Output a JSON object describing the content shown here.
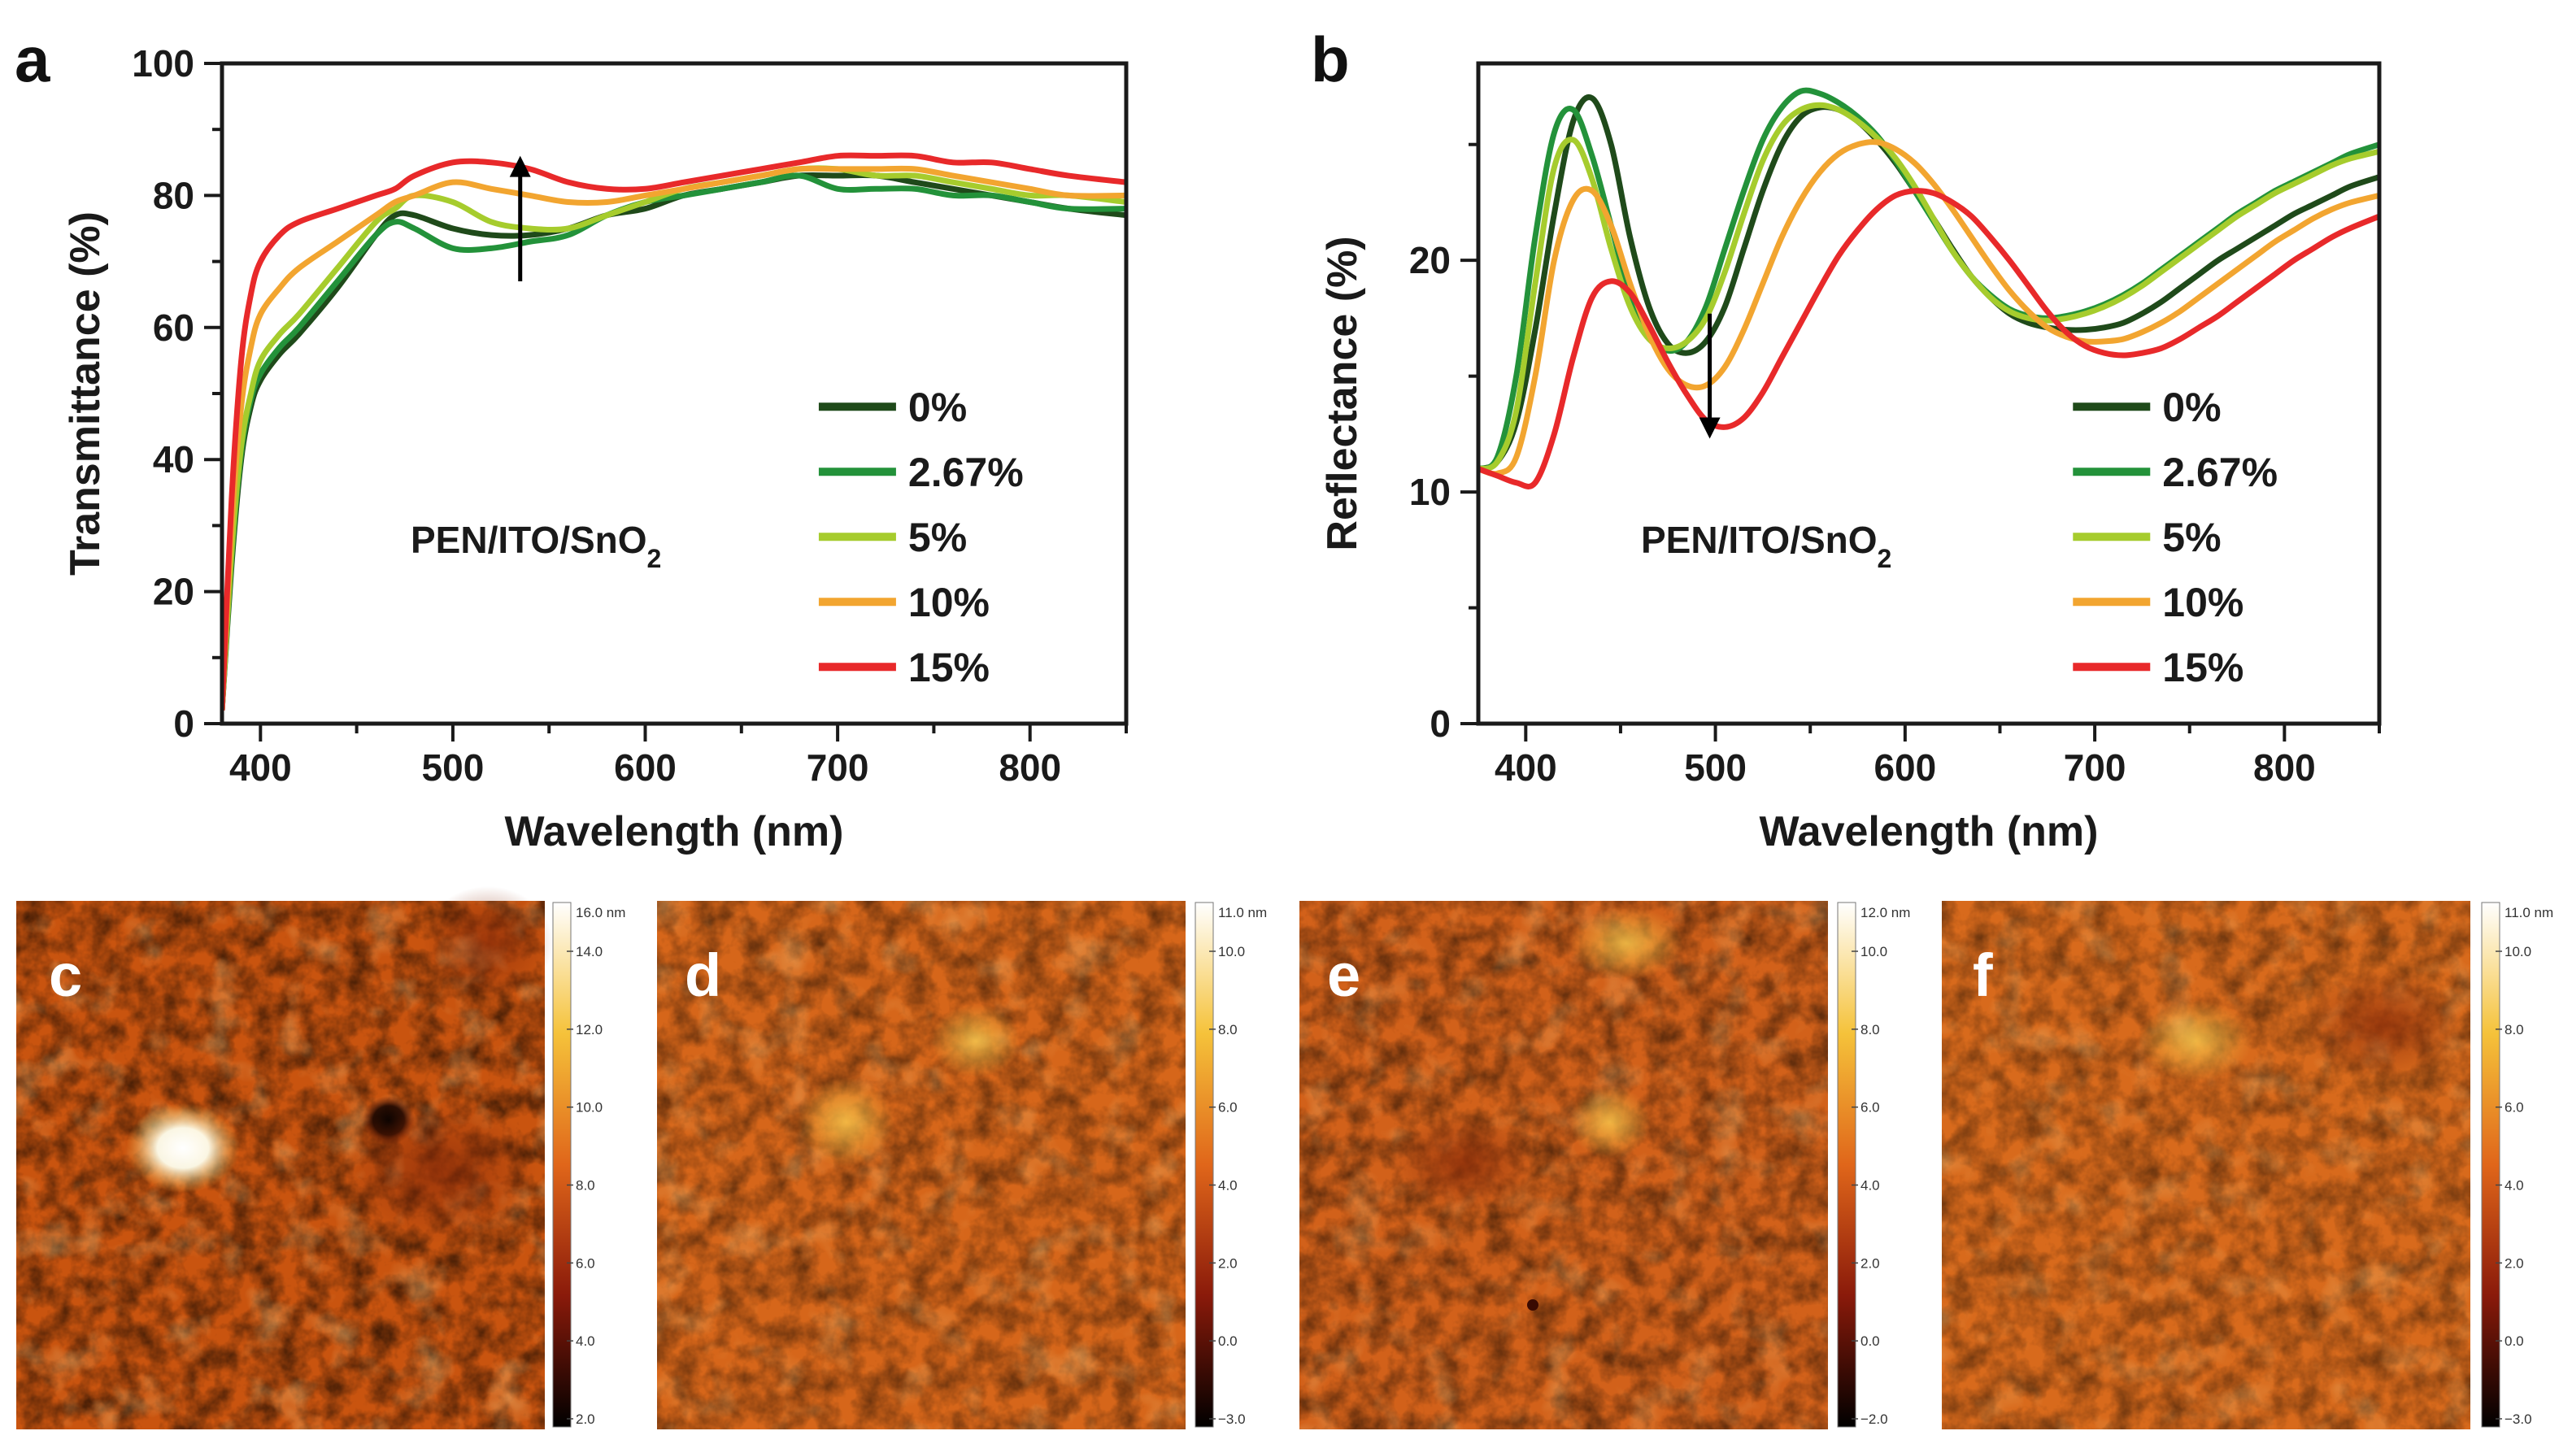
{
  "chart_data": [
    {
      "panel": "a",
      "type": "line",
      "xlabel": "Wavelength (nm)",
      "ylabel": "Transmittance (%)",
      "xlim": [
        380,
        850
      ],
      "ylim": [
        0,
        100
      ],
      "xticks": [
        400,
        500,
        600,
        700,
        800
      ],
      "yticks": [
        0,
        20,
        40,
        60,
        80,
        100
      ],
      "annotation": {
        "text": "PEN/ITO/SnO",
        "subscript": "2"
      },
      "arrow": {
        "direction": "up",
        "x": 535,
        "from": 67,
        "to": 86
      },
      "legend_position": "right",
      "series": [
        {
          "name": "0%",
          "color": "#1f4a1a",
          "x": [
            380,
            385,
            390,
            395,
            400,
            410,
            420,
            440,
            460,
            470,
            480,
            500,
            520,
            540,
            560,
            580,
            600,
            620,
            640,
            660,
            680,
            700,
            720,
            740,
            760,
            780,
            800,
            820,
            850
          ],
          "y": [
            2,
            24,
            40,
            48,
            52,
            56,
            59,
            66,
            74,
            77,
            77,
            75,
            74,
            74,
            75,
            77,
            78,
            80,
            81,
            82,
            83,
            83,
            83,
            82,
            81,
            80,
            79,
            78,
            77
          ]
        },
        {
          "name": "2.67%",
          "color": "#23923a",
          "x": [
            380,
            385,
            390,
            395,
            400,
            410,
            420,
            440,
            460,
            470,
            480,
            500,
            520,
            540,
            560,
            580,
            600,
            620,
            640,
            660,
            680,
            700,
            720,
            740,
            760,
            780,
            800,
            820,
            850
          ],
          "y": [
            2,
            25,
            41,
            49,
            53,
            57,
            60,
            67,
            74,
            76,
            75,
            72,
            72,
            73,
            74,
            77,
            79,
            80,
            81,
            82,
            83,
            81,
            81,
            81,
            80,
            80,
            79,
            78,
            78
          ]
        },
        {
          "name": "5%",
          "color": "#a6cc2d",
          "x": [
            380,
            385,
            390,
            395,
            400,
            410,
            420,
            440,
            460,
            470,
            480,
            500,
            520,
            540,
            560,
            580,
            600,
            620,
            640,
            660,
            680,
            700,
            720,
            740,
            760,
            780,
            800,
            820,
            850
          ],
          "y": [
            2,
            26,
            42,
            50,
            55,
            59,
            62,
            69,
            76,
            78,
            80,
            79,
            76,
            75,
            75,
            77,
            79,
            81,
            82,
            83,
            84,
            84,
            83,
            83,
            82,
            81,
            80,
            80,
            79
          ]
        },
        {
          "name": "10%",
          "color": "#f2a530",
          "x": [
            380,
            385,
            390,
            395,
            400,
            410,
            420,
            440,
            460,
            470,
            480,
            500,
            520,
            540,
            560,
            580,
            600,
            620,
            640,
            660,
            680,
            700,
            720,
            740,
            760,
            780,
            800,
            820,
            850
          ],
          "y": [
            2,
            30,
            48,
            57,
            62,
            66,
            69,
            73,
            77,
            79,
            80,
            82,
            81,
            80,
            79,
            79,
            80,
            81,
            82,
            83,
            84,
            84,
            84,
            84,
            83,
            82,
            81,
            80,
            80
          ]
        },
        {
          "name": "15%",
          "color": "#e8292a",
          "x": [
            380,
            385,
            390,
            395,
            400,
            410,
            420,
            440,
            460,
            470,
            480,
            500,
            520,
            540,
            560,
            580,
            600,
            620,
            640,
            660,
            680,
            700,
            720,
            740,
            760,
            780,
            800,
            820,
            850
          ],
          "y": [
            2,
            34,
            55,
            65,
            70,
            74,
            76,
            78,
            80,
            81,
            83,
            85,
            85,
            84,
            82,
            81,
            81,
            82,
            83,
            84,
            85,
            86,
            86,
            86,
            85,
            85,
            84,
            83,
            82
          ]
        }
      ]
    },
    {
      "panel": "b",
      "type": "line",
      "xlabel": "Wavelength (nm)",
      "ylabel": "Reflectance (%)",
      "xlim": [
        375,
        850
      ],
      "ylim": [
        0,
        28.5
      ],
      "xticks": [
        400,
        500,
        600,
        700,
        800
      ],
      "yticks": [
        0,
        10,
        20
      ],
      "annotation": {
        "text": "PEN/ITO/SnO",
        "subscript": "2"
      },
      "arrow": {
        "direction": "down",
        "x": 497,
        "from": 17.7,
        "to": 12.3
      },
      "legend_position": "right",
      "series": [
        {
          "name": "0%",
          "color": "#1f4a1a",
          "x": [
            375,
            385,
            395,
            405,
            415,
            425,
            435,
            445,
            455,
            465,
            475,
            485,
            495,
            505,
            515,
            525,
            535,
            545,
            555,
            565,
            575,
            585,
            595,
            605,
            615,
            625,
            635,
            645,
            655,
            665,
            675,
            685,
            695,
            705,
            715,
            725,
            735,
            745,
            755,
            765,
            775,
            785,
            795,
            805,
            815,
            825,
            835,
            850
          ],
          "y": [
            11,
            11.3,
            13,
            17,
            22,
            26,
            27,
            25,
            21,
            18,
            16.4,
            16,
            16.5,
            18,
            20.5,
            23,
            25,
            26.2,
            26.6,
            26.5,
            26,
            25.2,
            24.2,
            23,
            21.8,
            20.5,
            19.3,
            18.4,
            17.7,
            17.3,
            17.1,
            17,
            17,
            17.1,
            17.3,
            17.7,
            18.2,
            18.8,
            19.4,
            20,
            20.5,
            21,
            21.5,
            22,
            22.4,
            22.8,
            23.2,
            23.6
          ]
        },
        {
          "name": "2.67%",
          "color": "#23923a",
          "x": [
            375,
            385,
            395,
            405,
            415,
            425,
            435,
            445,
            455,
            465,
            475,
            485,
            495,
            505,
            515,
            525,
            535,
            545,
            555,
            565,
            575,
            585,
            595,
            605,
            615,
            625,
            635,
            645,
            655,
            665,
            675,
            685,
            695,
            705,
            715,
            725,
            735,
            745,
            755,
            765,
            775,
            785,
            795,
            805,
            815,
            825,
            835,
            850
          ],
          "y": [
            11,
            11.5,
            15,
            21,
            25.5,
            26.5,
            24.5,
            21.5,
            18.5,
            16.8,
            16.1,
            16.5,
            18,
            20.5,
            23,
            25.2,
            26.6,
            27.3,
            27.2,
            26.8,
            26.2,
            25.4,
            24.3,
            23,
            21.7,
            20.4,
            19.3,
            18.5,
            17.9,
            17.6,
            17.5,
            17.6,
            17.8,
            18.1,
            18.5,
            19,
            19.6,
            20.2,
            20.8,
            21.4,
            22,
            22.5,
            23,
            23.4,
            23.8,
            24.2,
            24.6,
            25
          ]
        },
        {
          "name": "5%",
          "color": "#a6cc2d",
          "x": [
            375,
            385,
            395,
            405,
            415,
            425,
            435,
            445,
            455,
            465,
            475,
            485,
            495,
            505,
            515,
            525,
            535,
            545,
            555,
            565,
            575,
            585,
            595,
            605,
            615,
            625,
            635,
            645,
            655,
            665,
            675,
            685,
            695,
            705,
            715,
            725,
            735,
            745,
            755,
            765,
            775,
            785,
            795,
            805,
            815,
            825,
            835,
            850
          ],
          "y": [
            11,
            11.3,
            13.5,
            19,
            24,
            25.2,
            23.5,
            20.5,
            18,
            16.6,
            16.2,
            16.5,
            17.5,
            19.5,
            22,
            24.3,
            25.8,
            26.5,
            26.7,
            26.5,
            26,
            25.3,
            24.4,
            23.2,
            21.8,
            20.4,
            19.3,
            18.4,
            17.8,
            17.5,
            17.4,
            17.5,
            17.7,
            18,
            18.4,
            18.9,
            19.5,
            20.1,
            20.7,
            21.3,
            21.9,
            22.4,
            22.9,
            23.3,
            23.7,
            24.1,
            24.4,
            24.7
          ]
        },
        {
          "name": "10%",
          "color": "#f2a530",
          "x": [
            375,
            385,
            395,
            405,
            415,
            425,
            435,
            445,
            455,
            465,
            475,
            485,
            495,
            505,
            515,
            525,
            535,
            545,
            555,
            565,
            575,
            585,
            595,
            605,
            615,
            625,
            635,
            645,
            655,
            665,
            675,
            685,
            695,
            705,
            715,
            725,
            735,
            745,
            755,
            765,
            775,
            785,
            795,
            805,
            815,
            825,
            835,
            850
          ],
          "y": [
            11,
            10.8,
            11.5,
            15,
            20,
            22.6,
            23,
            21.5,
            19,
            16.8,
            15.3,
            14.6,
            14.6,
            15.4,
            17,
            19,
            21,
            22.6,
            23.8,
            24.6,
            25,
            25.1,
            24.8,
            24.2,
            23.3,
            22.2,
            21,
            19.8,
            18.7,
            17.8,
            17.1,
            16.7,
            16.5,
            16.5,
            16.6,
            16.9,
            17.3,
            17.8,
            18.4,
            19,
            19.6,
            20.2,
            20.8,
            21.3,
            21.8,
            22.2,
            22.5,
            22.8
          ]
        },
        {
          "name": "15%",
          "color": "#e8292a",
          "x": [
            375,
            385,
            395,
            405,
            415,
            425,
            435,
            445,
            455,
            465,
            475,
            485,
            495,
            505,
            515,
            525,
            535,
            545,
            555,
            565,
            575,
            585,
            595,
            605,
            615,
            625,
            635,
            645,
            655,
            665,
            675,
            685,
            695,
            705,
            715,
            725,
            735,
            745,
            755,
            765,
            775,
            785,
            795,
            805,
            815,
            825,
            835,
            850
          ],
          "y": [
            11,
            10.7,
            10.4,
            10.4,
            12.5,
            15.8,
            18.4,
            19.1,
            18.6,
            17.2,
            15.6,
            14.2,
            13.1,
            12.8,
            13.2,
            14.3,
            15.8,
            17.3,
            18.8,
            20.2,
            21.3,
            22.2,
            22.8,
            23,
            22.9,
            22.5,
            21.9,
            21,
            20,
            18.9,
            17.8,
            16.9,
            16.3,
            16,
            15.9,
            16,
            16.2,
            16.6,
            17.1,
            17.6,
            18.2,
            18.8,
            19.4,
            20,
            20.5,
            21,
            21.4,
            21.9
          ]
        }
      ]
    },
    {
      "panel": "c",
      "type": "heatmap",
      "colorbar": {
        "max_label": "16.0 nm",
        "ticks": [
          "14.0",
          "12.0",
          "10.0",
          "8.0",
          "6.0",
          "4.0",
          "2.0"
        ]
      }
    },
    {
      "panel": "d",
      "type": "heatmap",
      "colorbar": {
        "max_label": "11.0 nm",
        "ticks": [
          "10.0",
          "8.0",
          "6.0",
          "4.0",
          "2.0",
          "0.0",
          "−3.0"
        ]
      }
    },
    {
      "panel": "e",
      "type": "heatmap",
      "colorbar": {
        "max_label": "12.0 nm",
        "ticks": [
          "10.0",
          "8.0",
          "6.0",
          "4.0",
          "2.0",
          "0.0",
          "−2.0"
        ]
      }
    },
    {
      "panel": "f",
      "type": "heatmap",
      "colorbar": {
        "max_label": "11.0 nm",
        "ticks": [
          "10.0",
          "8.0",
          "6.0",
          "4.0",
          "2.0",
          "0.0",
          "−3.0"
        ]
      }
    }
  ]
}
